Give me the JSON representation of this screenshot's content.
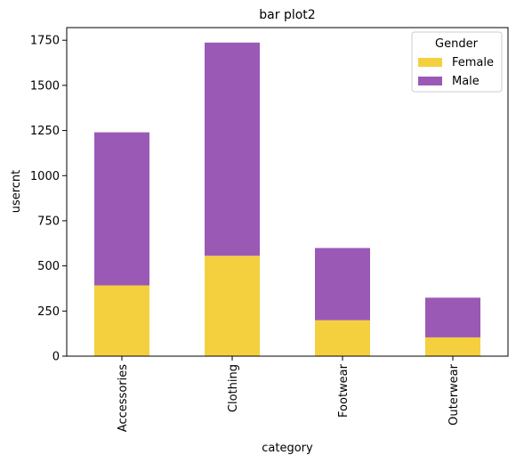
{
  "chart_data": {
    "type": "bar",
    "stacked": true,
    "title": "bar plot2",
    "xlabel": "category",
    "ylabel": "usercnt",
    "categories": [
      "Accessories",
      "Clothing",
      "Footwear",
      "Outerwear"
    ],
    "series": [
      {
        "name": "Female",
        "color": "#F4D03F",
        "values": [
          392,
          556,
          199,
          104
        ]
      },
      {
        "name": "Male",
        "color": "#9B59B6",
        "values": [
          848,
          1181,
          400,
          220
        ]
      }
    ],
    "ylim": [
      0,
      1820
    ],
    "yticks": [
      0,
      250,
      500,
      750,
      1000,
      1250,
      1500,
      1750
    ],
    "legend": {
      "title": "Gender",
      "placement": "top-right"
    },
    "grid": false
  }
}
